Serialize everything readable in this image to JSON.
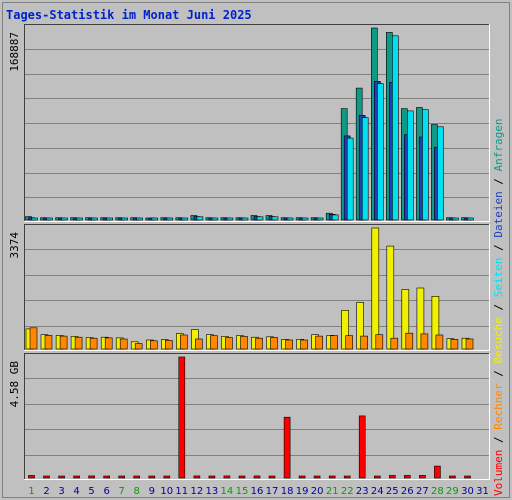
{
  "chart_data": {
    "type": "bar",
    "title": "Tages-Statistik im Monat Juni 2025",
    "x": [
      "1",
      "2",
      "3",
      "4",
      "5",
      "6",
      "7",
      "8",
      "9",
      "10",
      "11",
      "12",
      "13",
      "14",
      "15",
      "16",
      "17",
      "18",
      "19",
      "20",
      "21",
      "22",
      "23",
      "24",
      "25",
      "26",
      "27",
      "28",
      "29",
      "30",
      "31"
    ],
    "weekend_days": [
      "1",
      "7",
      "8",
      "14",
      "15",
      "21",
      "22",
      "28",
      "29"
    ],
    "panels": [
      {
        "name": "top",
        "ymax_label": "168887",
        "ymax": 168887,
        "series": [
          {
            "name": "Anfragen",
            "color": "#0f9a86",
            "values": [
              3000,
              2000,
              2000,
              2000,
              2000,
              2000,
              2000,
              2000,
              1000,
              2000,
              2000,
              4000,
              2000,
              2000,
              2000,
              4000,
              4000,
              2000,
              2000,
              2000,
              6000,
              98000,
              116000,
              168887,
              165000,
              98000,
              99000,
              84000,
              2000,
              2000,
              null
            ]
          },
          {
            "name": "Dateien",
            "color": "#1f3fbf",
            "values": [
              2000,
              1500,
              1500,
              1500,
              1500,
              1500,
              1500,
              1500,
              800,
              1500,
              1500,
              3000,
              1500,
              1500,
              1500,
              3000,
              3000,
              1500,
              1500,
              1500,
              5000,
              74000,
              92000,
              122000,
              121000,
              75000,
              73000,
              64000,
              1500,
              1500,
              null
            ]
          },
          {
            "name": "Seiten",
            "color": "#00e0f0",
            "values": [
              1800,
              1400,
              1400,
              1400,
              1400,
              1400,
              1400,
              1400,
              700,
              1400,
              1400,
              2800,
              1400,
              1400,
              1400,
              2800,
              2800,
              1400,
              1400,
              1400,
              4500,
              72000,
              90000,
              120000,
              162000,
              96000,
              97000,
              82000,
              1400,
              1400,
              null
            ]
          }
        ]
      },
      {
        "name": "middle",
        "ymax_label": "3374",
        "ymax": 3374,
        "series": [
          {
            "name": "Besuche",
            "color": "#f0f000",
            "values": [
              560,
              400,
              380,
              350,
              320,
              330,
              310,
              200,
              250,
              260,
              430,
              540,
              400,
              350,
              380,
              330,
              340,
              270,
              270,
              400,
              380,
              1080,
              1300,
              3374,
              2870,
              1660,
              1700,
              1470,
              290,
              300,
              null
            ]
          },
          {
            "name": "Rechner",
            "color": "#ff8800",
            "values": [
              590,
              380,
              360,
              330,
              300,
              310,
              280,
              150,
              230,
              240,
              390,
              280,
              370,
              320,
              350,
              300,
              320,
              250,
              250,
              360,
              370,
              370,
              360,
              400,
              300,
              440,
              420,
              390,
              270,
              280,
              null
            ]
          }
        ]
      },
      {
        "name": "bottom",
        "ymax_label": "4.58 GB",
        "ymax": 4.58,
        "series": [
          {
            "name": "Volumen",
            "color": "#ff0000",
            "values": [
              0.1,
              0.04,
              0.04,
              0.04,
              0.08,
              0.04,
              0.04,
              0.04,
              0.04,
              0.04,
              4.58,
              0.08,
              0.06,
              0.08,
              0.06,
              0.08,
              0.04,
              2.3,
              0.04,
              0.04,
              0.04,
              0.04,
              2.35,
              0.04,
              0.1,
              0.1,
              0.1,
              0.45,
              0.04,
              0.04,
              null
            ]
          }
        ]
      }
    ],
    "legend": [
      {
        "label": "Volumen",
        "color": "#ff0000"
      },
      {
        "label": "Rechner",
        "color": "#ff8800"
      },
      {
        "label": "Besuche",
        "color": "#f0f000"
      },
      {
        "label": "Seiten",
        "color": "#00e0f0"
      },
      {
        "label": "Dateien",
        "color": "#1f3fbf"
      },
      {
        "label": "Anfragen",
        "color": "#0f9a86"
      }
    ],
    "legend_separator": "/",
    "legend_position": "right-vertical",
    "grid": true,
    "colors": {
      "background": "#c0c0c0",
      "weekday_label": "#0000a0",
      "weekend_label": "#00a000",
      "title": "#0022cc"
    }
  }
}
